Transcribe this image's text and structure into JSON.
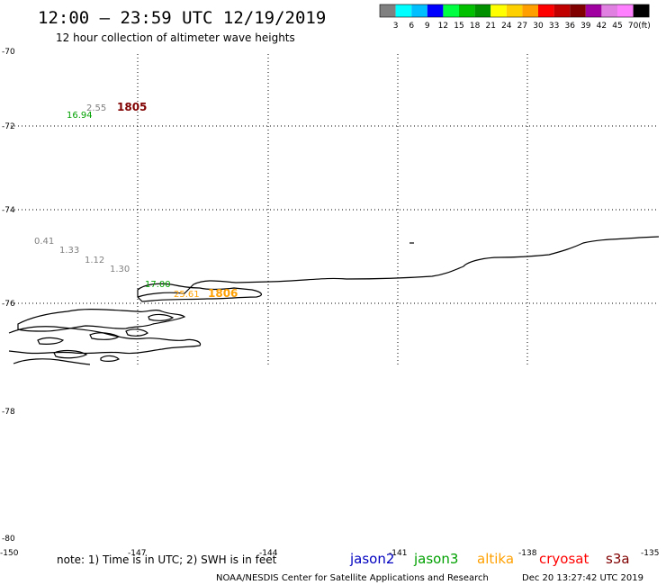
{
  "title": "12:00 – 23:59 UTC 12/19/2019",
  "subtitle": "12 hour collection of altimeter wave heights",
  "color_scale": {
    "unit": "(ft)",
    "colors": [
      "#808080",
      "#00ffff",
      "#00bfff",
      "#0000ff",
      "#00ff40",
      "#00c000",
      "#009000",
      "#ffff00",
      "#ffd000",
      "#ffa000",
      "#ff0000",
      "#c00000",
      "#800000",
      "#a000a0",
      "#e080e0",
      "#ff80ff",
      "#000000"
    ],
    "labels": [
      "3",
      "6",
      "9",
      "12",
      "15",
      "18",
      "21",
      "24",
      "27",
      "30",
      "33",
      "36",
      "39",
      "42",
      "45",
      "70"
    ]
  },
  "lat_labels": [
    "-70",
    "-72",
    "-74",
    "-76",
    "-78",
    "-80"
  ],
  "lon_labels": [
    "-150",
    "-147",
    "-144",
    "-141",
    "-138",
    "-135"
  ],
  "wave_labels": [
    {
      "text": "2.55",
      "color": "#808080"
    },
    {
      "text": "16.94",
      "color": "#00a000"
    },
    {
      "text": "0.41",
      "color": "#808080"
    },
    {
      "text": "1.33",
      "color": "#808080"
    },
    {
      "text": "1.12",
      "color": "#808080"
    },
    {
      "text": "1.30",
      "color": "#808080"
    },
    {
      "text": "17.00",
      "color": "#00a000"
    },
    {
      "text": "25.61",
      "color": "#ffa000"
    }
  ],
  "cycle_labels": [
    {
      "text": "1805",
      "color": "#800000"
    },
    {
      "text": "1806",
      "color": "#ffa000"
    }
  ],
  "note": "note:  1) Time is in UTC;  2) SWH is in feet",
  "satellites": [
    {
      "name": "jason2",
      "color": "#0000c0"
    },
    {
      "name": "jason3",
      "color": "#00a000"
    },
    {
      "name": "altika",
      "color": "#ffa000"
    },
    {
      "name": "cryosat",
      "color": "#ff0000"
    },
    {
      "name": "s3a",
      "color": "#800000"
    }
  ],
  "footer_left": "NOAA/NESDIS Center for Satellite Applications and Research",
  "footer_right": "Dec 20 13:27:42 UTC 2019"
}
